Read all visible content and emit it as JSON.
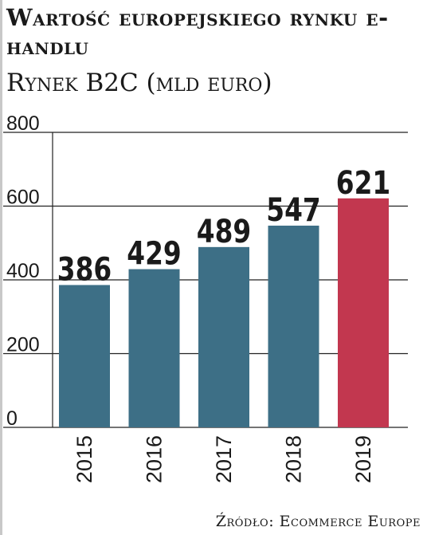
{
  "title": "Wartość europejskiego rynku e-handlu",
  "subtitle": "Rynek B2C (mld euro)",
  "source": "Źródło: Ecommerce Europe",
  "chart_data": {
    "type": "bar",
    "categories": [
      "2015",
      "2016",
      "2017",
      "2018",
      "2019"
    ],
    "values": [
      386,
      429,
      489,
      547,
      621
    ],
    "value_labels": [
      "386",
      "429",
      "489",
      "547",
      "621"
    ],
    "y_ticks": [
      0,
      200,
      400,
      600,
      800
    ],
    "y_tick_labels": [
      "0",
      "200",
      "400",
      "600",
      "800"
    ],
    "ylim": [
      0,
      800
    ],
    "grid": true,
    "legend": "none",
    "xlabel": "",
    "ylabel": "",
    "colors": {
      "bar": "#3d6f86",
      "highlight": "#c2374f",
      "grid": "#222222",
      "text": "#1a1a1a"
    },
    "highlight_index": 4
  }
}
